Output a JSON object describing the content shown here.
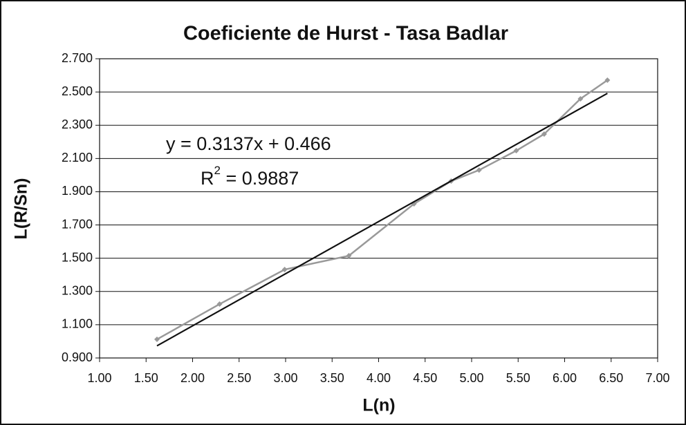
{
  "chart_data": {
    "type": "line",
    "title": "Coeficiente de Hurst - Tasa Badlar",
    "x_label": "L(n)",
    "y_label": "L(R/Sn)",
    "x": [
      1.617,
      2.29,
      2.99,
      3.68,
      4.38,
      4.78,
      5.08,
      5.48,
      5.78,
      6.17,
      6.46
    ],
    "series": [
      {
        "color": "#999999",
        "values": [
          1.012,
          1.224,
          1.432,
          1.515,
          1.827,
          1.964,
          2.03,
          2.147,
          2.247,
          2.459,
          2.571
        ]
      }
    ],
    "trendline": {
      "color": "#111111",
      "x": [
        1.617,
        6.46
      ],
      "values": [
        0.973,
        2.492
      ],
      "equation": "y = 0.3137x + 0.466",
      "r2_text": [
        "R",
        "2",
        " = 0.9887"
      ]
    },
    "xlim": [
      1,
      7
    ],
    "xticks": [
      {
        "value": 1,
        "label": "1.00"
      },
      {
        "value": 1.5,
        "label": "1.50"
      },
      {
        "value": 2,
        "label": "2.00"
      },
      {
        "value": 2.5,
        "label": "2.50"
      },
      {
        "value": 3,
        "label": "3.00"
      },
      {
        "value": 3.5,
        "label": "3.50"
      },
      {
        "value": 4,
        "label": "4.00"
      },
      {
        "value": 4.5,
        "label": "4.50"
      },
      {
        "value": 5,
        "label": "5.00"
      },
      {
        "value": 5.5,
        "label": "5.50"
      },
      {
        "value": 6,
        "label": "6.00"
      },
      {
        "value": 6.5,
        "label": "6.50"
      },
      {
        "value": 7,
        "label": "7.00"
      }
    ],
    "ylim": [
      0.9,
      2.7
    ],
    "yticks": [
      {
        "value": 0.9,
        "label": "0.900"
      },
      {
        "value": 1.1,
        "label": "1.100"
      },
      {
        "value": 1.3,
        "label": "1.300"
      },
      {
        "value": 1.5,
        "label": "1.500"
      },
      {
        "value": 1.7,
        "label": "1.700"
      },
      {
        "value": 1.9,
        "label": "1.900"
      },
      {
        "value": 2.1,
        "label": "2.100"
      },
      {
        "value": 2.3,
        "label": "2.300"
      },
      {
        "value": 2.5,
        "label": "2.500"
      },
      {
        "value": 2.7,
        "label": "2.700"
      }
    ],
    "grid": true
  }
}
